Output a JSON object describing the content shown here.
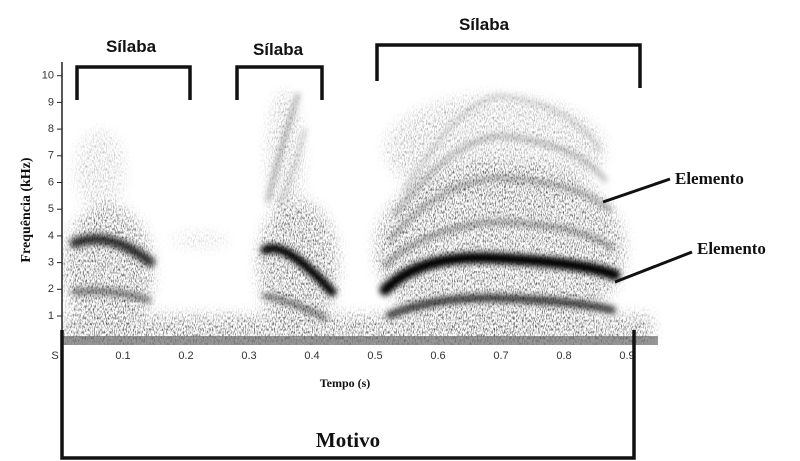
{
  "syllable_labels": [
    "Sílaba",
    "Sílaba",
    "Sílaba"
  ],
  "element_labels": [
    "Elemento",
    "Elemento"
  ],
  "motif_label": "Motivo",
  "y_axis_label": "Frequência (kHz)",
  "x_axis_label": "Tempo (s)",
  "y_ticks": [
    "1",
    "2",
    "3",
    "4",
    "5",
    "6",
    "7",
    "8",
    "9",
    "10"
  ],
  "x_ticks": [
    "S",
    "0.1",
    "0.2",
    "0.3",
    "0.4",
    "0.5",
    "0.6",
    "0.7",
    "0.8",
    "0.9"
  ]
}
